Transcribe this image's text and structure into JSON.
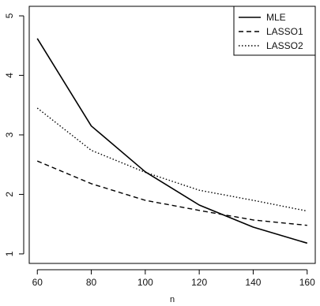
{
  "chart_data": {
    "type": "line",
    "title": "",
    "xlabel": "n",
    "ylabel": "",
    "xlim": [
      57,
      163
    ],
    "ylim": [
      0.84,
      5.16
    ],
    "x": [
      60,
      80,
      100,
      120,
      140,
      160
    ],
    "xticks": [
      60,
      80,
      100,
      120,
      140,
      160
    ],
    "yticks": [
      1,
      2,
      3,
      4,
      5
    ],
    "grid": false,
    "legend_position": "top-right",
    "series": [
      {
        "name": "MLE",
        "dash": "solid",
        "values": [
          4.62,
          3.15,
          2.38,
          1.82,
          1.45,
          1.18
        ]
      },
      {
        "name": "LASSO1",
        "dash": "dashed",
        "values": [
          2.56,
          2.18,
          1.9,
          1.73,
          1.57,
          1.48
        ]
      },
      {
        "name": "LASSO2",
        "dash": "dotted",
        "values": [
          3.45,
          2.74,
          2.37,
          2.07,
          1.9,
          1.72
        ]
      }
    ]
  }
}
